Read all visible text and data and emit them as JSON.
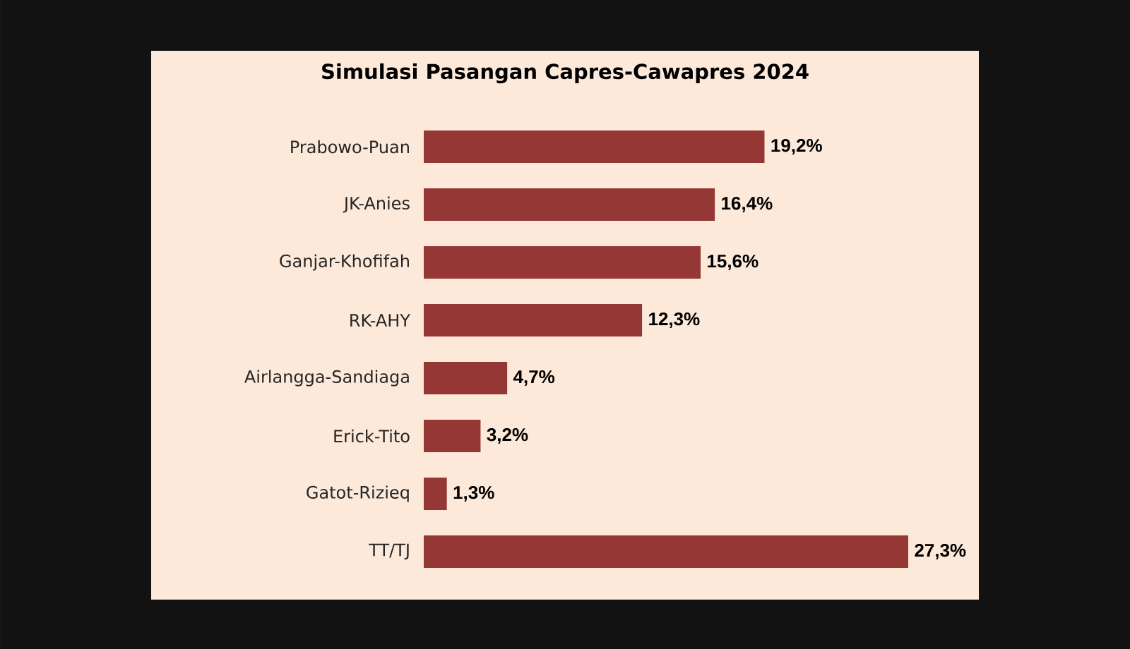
{
  "chart_data": {
    "type": "bar",
    "orientation": "horizontal",
    "title": "Simulasi Pasangan Capres-Cawapres 2024",
    "categories": [
      "Prabowo-Puan",
      "JK-Anies",
      "Ganjar-Khofifah",
      "RK-AHY",
      "Airlangga-Sandiaga",
      "Erick-Tito",
      "Gatot-Rizieq",
      "TT/TJ"
    ],
    "values": [
      19.2,
      16.4,
      15.6,
      12.3,
      4.7,
      3.2,
      1.3,
      27.3
    ],
    "value_labels": [
      "19,2%",
      "16,4%",
      "15,6%",
      "12,3%",
      "4,7%",
      "3,2%",
      "1,3%",
      "27,3%"
    ],
    "color": "#953735"
  }
}
